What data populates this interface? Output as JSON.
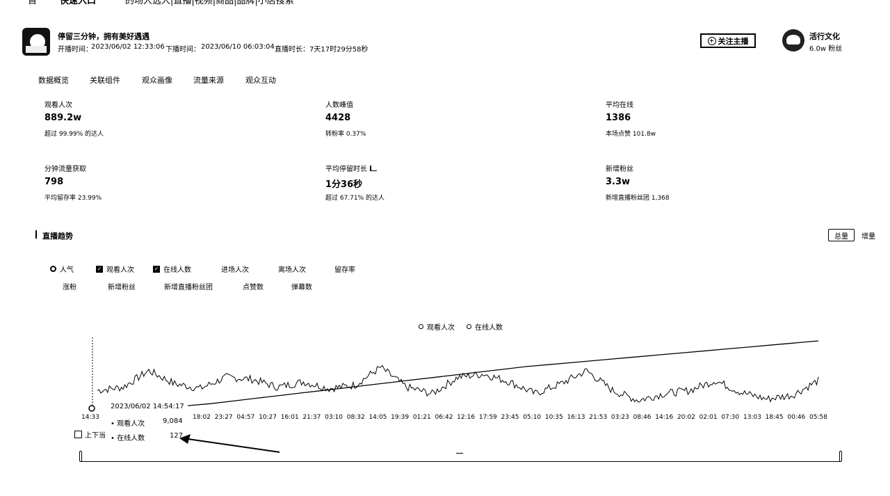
{
  "topbar": {
    "items": [
      "首",
      "快速入口",
      "的场人选人|直播|视频|商品|品牌|小店搜索"
    ]
  },
  "header": {
    "title": "停留三分钟，拥有美好遇遇",
    "start_label": "开播时间：",
    "start_time": "2023/06/02 12:33:06",
    "end_label": "下播时间：",
    "end_time": "2023/06/10 06:03:04",
    "duration_label": "直播时长：",
    "duration": "7天17时29分58秒",
    "follow_label": "关注主播",
    "org_name": "活行文化",
    "org_fans": "6.0w 粉丝"
  },
  "tabs": [
    "数据概览",
    "关联组件",
    "观众画像",
    "流量来源",
    "观众互动"
  ],
  "metrics": [
    {
      "label": "观看人次",
      "value": "889.2w",
      "sub": "超过 99.99% 的达人"
    },
    {
      "label": "人数峰值",
      "value": "4428",
      "sub": "转粉率 0.37%"
    },
    {
      "label": "平均在线",
      "value": "1386",
      "sub": "本场点赞 101.8w"
    },
    {
      "label": "分钟流量获取",
      "value": "798",
      "sub": "平均留存率 23.99%"
    },
    {
      "label": "平均停留时长",
      "value": "1分36秒",
      "sub": "超过 67.71% 的达人"
    },
    {
      "label": "新增粉丝",
      "value": "3.3w",
      "sub": "新增直播粉丝团 1,368"
    }
  ],
  "trend": {
    "title": "直播趋势",
    "toggle_total": "总量",
    "toggle_increment": "增量",
    "options_row1": [
      "人气",
      "观看人次",
      "在线人数",
      "进场人次",
      "离场人次",
      "留存率"
    ],
    "options_row2": [
      "涨粉",
      "新增粉丝",
      "新增直播粉丝团",
      "点赞数",
      "弹幕数"
    ],
    "legend": [
      "观看人次",
      "在线人数"
    ],
    "tooltip": {
      "time": "2023/06/02 14:54:17",
      "rows": [
        {
          "label": "观看人次",
          "value": "9,084"
        },
        {
          "label": "在线人数",
          "value": "127"
        }
      ],
      "pin_label": "上下当"
    }
  },
  "chart_data": {
    "type": "line",
    "x_first_tick": "14:33",
    "x_ticks": [
      "18:02",
      "23:27",
      "04:57",
      "10:27",
      "16:01",
      "21:37",
      "03:10",
      "08:32",
      "14:05",
      "19:39",
      "01:21",
      "06:42",
      "12:16",
      "17:59",
      "23:45",
      "05:10",
      "10:35",
      "16:13",
      "21:53",
      "03:23",
      "08:46",
      "14:16",
      "20:02",
      "02:01",
      "07:30",
      "13:03",
      "18:45",
      "00:46",
      "05:58"
    ],
    "series": [
      {
        "name": "观看人次",
        "trend": "monotonic-increasing",
        "values_relative": [
          0.02,
          0.05,
          0.09,
          0.13,
          0.17,
          0.21,
          0.25,
          0.29,
          0.33,
          0.37,
          0.41,
          0.45,
          0.49,
          0.53,
          0.57,
          0.61,
          0.64,
          0.67,
          0.7,
          0.73,
          0.76,
          0.79,
          0.82,
          0.85,
          0.88,
          0.91,
          0.94,
          0.97,
          1.0
        ]
      },
      {
        "name": "在线人数",
        "trend": "fluctuating",
        "values_relative": [
          0.25,
          0.3,
          0.55,
          0.35,
          0.28,
          0.45,
          0.42,
          0.3,
          0.38,
          0.28,
          0.33,
          0.6,
          0.3,
          0.2,
          0.45,
          0.5,
          0.38,
          0.2,
          0.35,
          0.55,
          0.25,
          0.1,
          0.2,
          0.25,
          0.4,
          0.22,
          0.12,
          0.18,
          0.4
        ]
      }
    ]
  }
}
